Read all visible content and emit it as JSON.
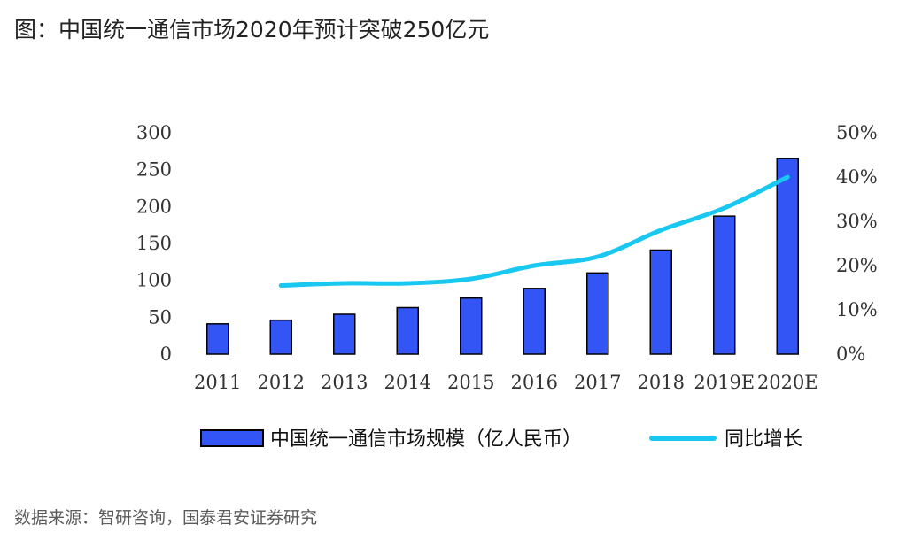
{
  "title": "图：中国统一通信市场2020年预计突破250亿元",
  "source": "数据来源：智研咨询，国泰君安证券研究",
  "colors": {
    "bar": "#3355f5",
    "bar_stroke": "#000000",
    "line": "#18c8f0"
  },
  "chart_data": {
    "type": "bar",
    "categories": [
      "2011",
      "2012",
      "2013",
      "2014",
      "2015",
      "2016",
      "2017",
      "2018",
      "2019E",
      "2020E"
    ],
    "series": [
      {
        "name": "中国统一通信市场规模（亿人民币）",
        "type": "bar",
        "axis": "left",
        "values": [
          41,
          46,
          54,
          63,
          76,
          89,
          110,
          141,
          187,
          265
        ]
      },
      {
        "name": "同比增长",
        "type": "line",
        "axis": "right",
        "values": [
          null,
          0.155,
          0.16,
          0.16,
          0.17,
          0.2,
          0.22,
          0.28,
          0.33,
          0.4
        ]
      }
    ],
    "y_left": {
      "ylim": [
        0,
        300
      ],
      "ticks": [
        0,
        50,
        100,
        150,
        200,
        250,
        300
      ],
      "tick_labels": [
        "0",
        "50",
        "100",
        "150",
        "200",
        "250",
        "300"
      ]
    },
    "y_right": {
      "ylim": [
        0,
        0.5
      ],
      "ticks": [
        0,
        0.1,
        0.2,
        0.3,
        0.4,
        0.5
      ],
      "tick_labels": [
        "0%",
        "10%",
        "20%",
        "30%",
        "40%",
        "50%"
      ]
    },
    "legend": "bottom",
    "grid": false
  }
}
